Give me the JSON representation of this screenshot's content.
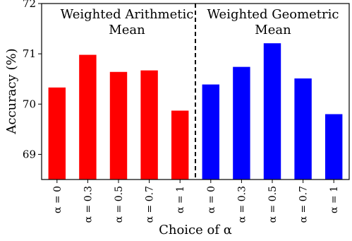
{
  "chart_data": {
    "type": "bar",
    "categories": [
      "α = 0",
      "α = 0.3",
      "α = 0.5",
      "α = 0.7",
      "α = 1",
      "α = 0",
      "α = 0.3",
      "α = 0.5",
      "α = 0.7",
      "α = 1"
    ],
    "series": [
      {
        "values": [
          70.33,
          70.98,
          70.64,
          70.67,
          69.87,
          null,
          null,
          null,
          null,
          null
        ]
      },
      {
        "values": [
          null,
          null,
          null,
          null,
          null,
          70.39,
          70.74,
          71.21,
          70.51,
          69.8
        ]
      }
    ],
    "colors": [
      "#ff0000",
      "#0000ff"
    ],
    "annotations": [
      {
        "line1": "Weighted Arithmetic",
        "line2": "Mean"
      },
      {
        "line1": "Weighted Geometric",
        "line2": "Mean"
      }
    ],
    "xlabel": "Choice of α",
    "ylabel": "Accuracy (%)",
    "ylim": [
      68.5,
      72
    ],
    "yticks": [
      69,
      70,
      71,
      72
    ],
    "divider": "dashed vertical line between the two groups",
    "grid": false
  }
}
